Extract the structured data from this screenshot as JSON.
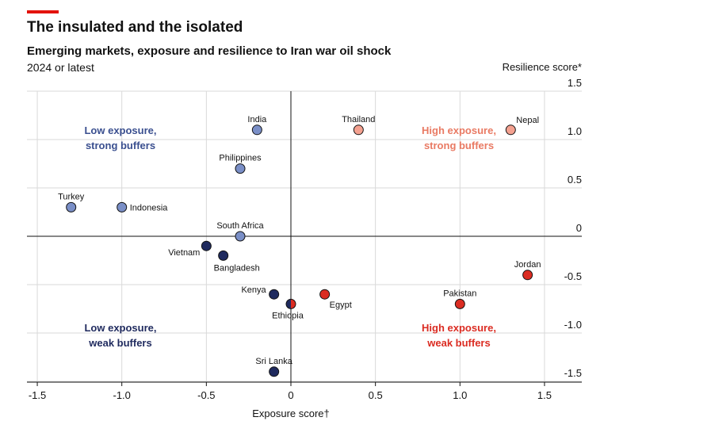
{
  "header": {
    "title": "The insulated and the isolated",
    "subtitle": "Emerging markets, exposure and resilience to Iran war oil shock",
    "note": "2024 or latest"
  },
  "chart_data": {
    "type": "scatter",
    "xlabel": "Exposure score†",
    "ylabel": "Resilience score*",
    "xlim": [
      -1.5,
      1.75
    ],
    "ylim": [
      -1.5,
      1.5
    ],
    "x_ticks": [
      "-1.5",
      "-1.0",
      "-0.5",
      "0",
      "0.5",
      "1.0",
      "1.5"
    ],
    "x_tick_values": [
      -1.5,
      -1.0,
      -0.5,
      0,
      0.5,
      1.0,
      1.5
    ],
    "y_ticks": [
      "1.5",
      "1.0",
      "0.5",
      "0",
      "-0.5",
      "-1.0",
      "-1.5"
    ],
    "y_tick_values": [
      1.5,
      1.0,
      0.5,
      0,
      -0.5,
      -1.0,
      -1.5
    ],
    "colors": {
      "low_strong": "#7a8fc7",
      "low_weak": "#1f2a5e",
      "high_strong": "#f4a190",
      "high_weak": "#db2c22",
      "quad_low_strong": "#3a4f8f",
      "quad_low_weak": "#1f2a5e",
      "quad_high_strong": "#e97a63",
      "quad_high_weak": "#db2c22"
    },
    "quadrant_labels": [
      {
        "line1": "Low exposure,",
        "line2": "strong buffers",
        "group": "low_strong"
      },
      {
        "line1": "High exposure,",
        "line2": "strong buffers",
        "group": "high_strong"
      },
      {
        "line1": "Low exposure,",
        "line2": "weak buffers",
        "group": "low_weak"
      },
      {
        "line1": "High exposure,",
        "line2": "weak buffers",
        "group": "high_weak"
      }
    ],
    "points": [
      {
        "name": "India",
        "x": -0.2,
        "y": 1.1,
        "group": "low_strong",
        "label_pos": "above"
      },
      {
        "name": "Thailand",
        "x": 0.4,
        "y": 1.1,
        "group": "high_strong",
        "label_pos": "above"
      },
      {
        "name": "Nepal",
        "x": 1.3,
        "y": 1.1,
        "group": "high_strong",
        "label_pos": "above-right"
      },
      {
        "name": "Philippines",
        "x": -0.3,
        "y": 0.7,
        "group": "low_strong",
        "label_pos": "above"
      },
      {
        "name": "Turkey",
        "x": -1.3,
        "y": 0.3,
        "group": "low_strong",
        "label_pos": "above"
      },
      {
        "name": "Indonesia",
        "x": -1.0,
        "y": 0.3,
        "group": "low_strong",
        "label_pos": "right"
      },
      {
        "name": "South Africa",
        "x": -0.3,
        "y": 0.0,
        "group": "low_strong",
        "label_pos": "above"
      },
      {
        "name": "Vietnam",
        "x": -0.5,
        "y": -0.1,
        "group": "low_weak",
        "label_pos": "below-left"
      },
      {
        "name": "Bangladesh",
        "x": -0.4,
        "y": -0.2,
        "group": "low_weak",
        "label_pos": "below-right"
      },
      {
        "name": "Jordan",
        "x": 1.4,
        "y": -0.4,
        "group": "high_weak",
        "label_pos": "above"
      },
      {
        "name": "Kenya",
        "x": -0.1,
        "y": -0.6,
        "group": "low_weak",
        "label_pos": "left"
      },
      {
        "name": "Egypt",
        "x": 0.2,
        "y": -0.6,
        "group": "high_weak",
        "label_pos": "below-right"
      },
      {
        "name": "Ethiopia",
        "x": 0.0,
        "y": -0.7,
        "group": "high_weak",
        "split": true,
        "label_pos": "below-left"
      },
      {
        "name": "Pakistan",
        "x": 1.0,
        "y": -0.7,
        "group": "high_weak",
        "label_pos": "above"
      },
      {
        "name": "Sri Lanka",
        "x": -0.1,
        "y": -1.4,
        "group": "low_weak",
        "label_pos": "above"
      }
    ]
  }
}
